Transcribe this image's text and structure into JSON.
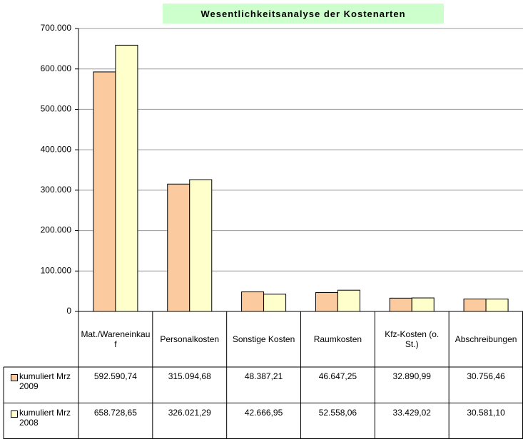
{
  "chart_data": {
    "type": "bar",
    "title": "Wesentlichkeitsanalyse der Kostenarten",
    "categories": [
      "Mat./Wareneinkauf",
      "Personalkosten",
      "Sonstige Kosten",
      "Raumkosten",
      "Kfz-Kosten (o. St.)",
      "Abschreibungen"
    ],
    "series": [
      {
        "name": "kumuliert Mrz 2009",
        "color": "#fbcb9f",
        "values": [
          592590.74,
          315094.68,
          48387.21,
          46647.25,
          32890.99,
          30756.46
        ],
        "value_labels": [
          "592.590,74",
          "315.094,68",
          "48.387,21",
          "46.647,25",
          "32.890,99",
          "30.756,46"
        ]
      },
      {
        "name": "kumuliert Mrz 2008",
        "color": "#ffffcc",
        "values": [
          658728.65,
          326021.29,
          42666.95,
          52558.06,
          33429.02,
          30581.1
        ],
        "value_labels": [
          "658.728,65",
          "326.021,29",
          "42.666,95",
          "52.558,06",
          "33.429,02",
          "30.581,10"
        ]
      }
    ],
    "ylim": [
      0,
      700000
    ],
    "yticks": [
      0,
      {
        "value": 100000,
        "label": "100.000"
      },
      {
        "value": 200000,
        "label": "200.000"
      },
      {
        "value": 300000,
        "label": "300.000"
      },
      {
        "value": 400000,
        "label": "400.000"
      },
      {
        "value": 500000,
        "label": "500.000"
      },
      {
        "value": 600000,
        "label": "600.000"
      },
      {
        "value": 700000,
        "label": "700.000"
      }
    ],
    "grid": true
  }
}
